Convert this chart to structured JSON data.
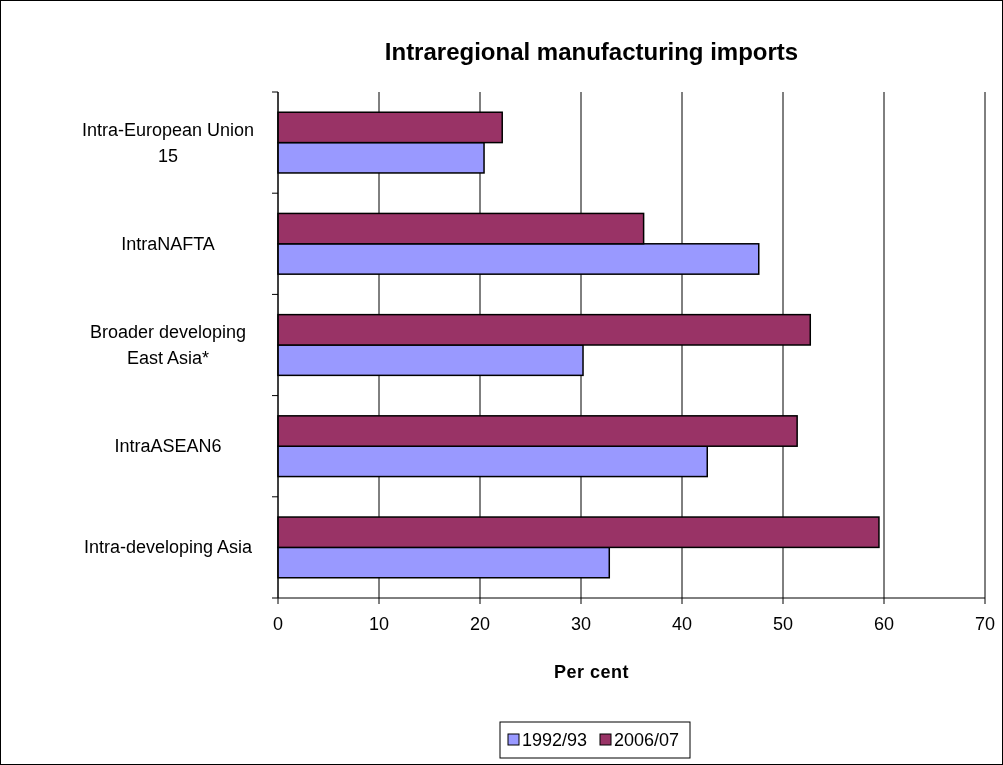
{
  "chart_data": {
    "type": "bar",
    "orientation": "horizontal",
    "title": "Intraregional manufacturing imports",
    "xlabel": "Per cent",
    "categories": [
      "Intra-European Union 15",
      "IntraNAFTA",
      "Broader developing East Asia*",
      "IntraASEAN6",
      "Intra-developing Asia"
    ],
    "series": [
      {
        "name": "1992/93",
        "color": "#9999ff",
        "values": [
          20.4,
          47.6,
          30.2,
          42.5,
          32.8
        ]
      },
      {
        "name": "2006/07",
        "color": "#993366",
        "values": [
          22.2,
          36.2,
          52.7,
          51.4,
          59.5
        ]
      }
    ],
    "xlim": [
      0,
      70
    ],
    "xticks": [
      0,
      10,
      20,
      30,
      40,
      50,
      60,
      70
    ],
    "grid": "x",
    "legend": "bottom"
  }
}
